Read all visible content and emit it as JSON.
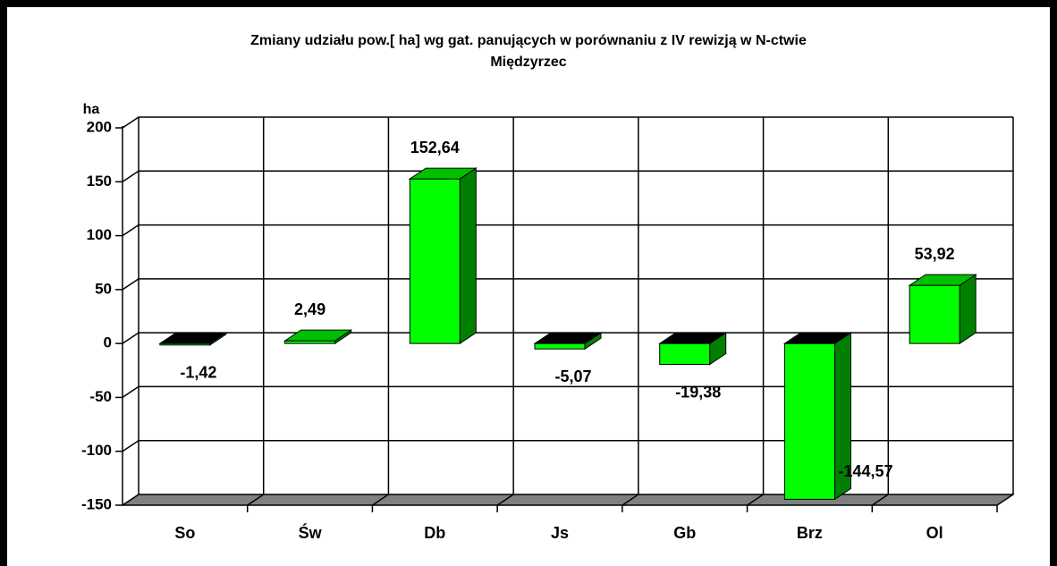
{
  "chart_data": {
    "type": "bar3d",
    "title": "Zmiany udziału pow.[ ha] wg gat. panujących w porównaniu z IV rewizją w N-ctwie",
    "subtitle": "Międzyrzec",
    "y_label": "ha",
    "categories": [
      "So",
      "Św",
      "Db",
      "Js",
      "Gb",
      "Brz",
      "Ol"
    ],
    "values": [
      -1.42,
      2.49,
      152.64,
      -5.07,
      -19.38,
      -144.57,
      53.92
    ],
    "value_labels": [
      "-1,42",
      "2,49",
      "152,64",
      "-5,07",
      "-19,38",
      "-144,57",
      "53,92"
    ],
    "color": "#00ff00",
    "ylim": [
      -150,
      200
    ],
    "yticks": [
      -150,
      -100,
      -50,
      0,
      50,
      100,
      150,
      200
    ],
    "grid": true
  }
}
